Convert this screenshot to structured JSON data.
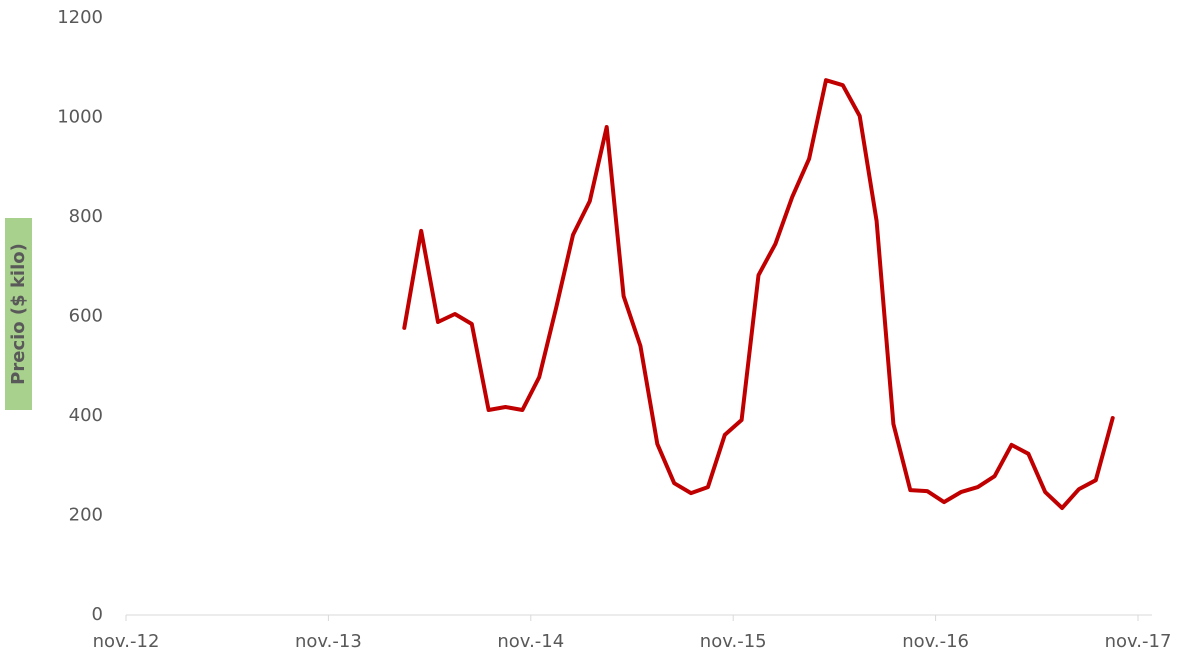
{
  "chart_data": {
    "type": "line",
    "y_label": "Precio ($ kilo)",
    "x": [
      "2014-03",
      "2014-04",
      "2014-05",
      "2014-06",
      "2014-07",
      "2014-08",
      "2014-09",
      "2014-10",
      "2014-11",
      "2014-12",
      "2015-01",
      "2015-02",
      "2015-03",
      "2015-04",
      "2015-05",
      "2015-06",
      "2015-07",
      "2015-08",
      "2015-09",
      "2015-10",
      "2015-11",
      "2015-12",
      "2016-01",
      "2016-02",
      "2016-03",
      "2016-04",
      "2016-05",
      "2016-06",
      "2016-07",
      "2016-08",
      "2016-09",
      "2016-10",
      "2016-11",
      "2016-12",
      "2017-01",
      "2017-02",
      "2017-03",
      "2017-04",
      "2017-05",
      "2017-06",
      "2017-07",
      "2017-08",
      "2017-09"
    ],
    "values": [
      577,
      772,
      589,
      605,
      585,
      412,
      418,
      412,
      478,
      617,
      764,
      832,
      981,
      641,
      541,
      344,
      265,
      245,
      257,
      362,
      392,
      683,
      746,
      840,
      917,
      1075,
      1065,
      1003,
      792,
      384,
      251,
      249,
      227,
      247,
      257,
      279,
      342,
      324,
      247,
      215,
      253,
      271,
      396
    ],
    "color": "#c00000",
    "xlim": [
      "2012-11",
      "2017-11"
    ],
    "xticks": [
      {
        "value": "2012-11",
        "label": "nov.-12"
      },
      {
        "value": "2013-11",
        "label": "nov.-13"
      },
      {
        "value": "2014-11",
        "label": "nov.-14"
      },
      {
        "value": "2015-11",
        "label": "nov.-15"
      },
      {
        "value": "2016-11",
        "label": "nov.-16"
      },
      {
        "value": "2017-11",
        "label": "nov.-17"
      }
    ],
    "ylim": [
      0,
      1200
    ],
    "yticks": [
      0,
      200,
      400,
      600,
      800,
      1000,
      1200
    ],
    "grid": false
  }
}
